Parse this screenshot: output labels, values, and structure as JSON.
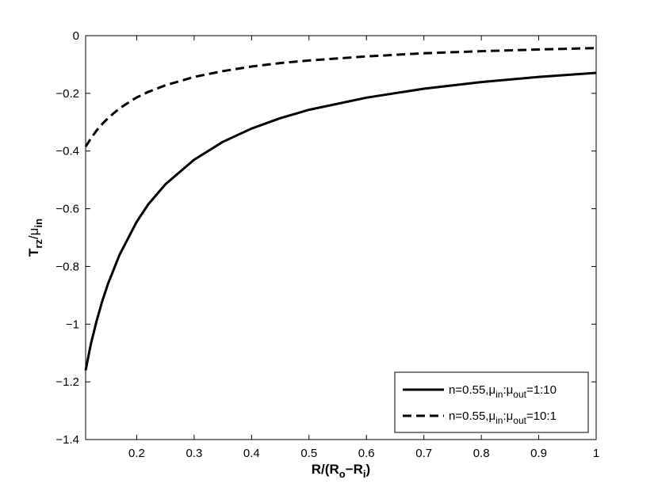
{
  "chart_data": {
    "type": "line",
    "title": "",
    "xlabel": {
      "base": "R/(R",
      "sub1": "o",
      "mid": "−R",
      "sub2": "i",
      "end": ")"
    },
    "ylabel": {
      "base": "T",
      "sub1": "rz",
      "mid": "/μ",
      "sub2": "in"
    },
    "xlim": [
      0.111,
      1.0
    ],
    "ylim": [
      -1.4,
      0
    ],
    "xticks": [
      0.2,
      0.3,
      0.4,
      0.5,
      0.6,
      0.7,
      0.8,
      0.9,
      1
    ],
    "xtick_labels": [
      "0.2",
      "0.3",
      "0.4",
      "0.5",
      "0.6",
      "0.7",
      "0.8",
      "0.9",
      "1"
    ],
    "yticks": [
      0,
      -0.2,
      -0.4,
      -0.6,
      -0.8,
      -1,
      -1.2,
      -1.4
    ],
    "ytick_labels": [
      "0",
      "−0.2",
      "−0.4",
      "−0.6",
      "−0.8",
      "−1",
      "−1.2",
      "−1.4"
    ],
    "grid": false,
    "legend_position": "bottom-right",
    "series": [
      {
        "style": "solid",
        "legend": {
          "prefix": "n=0.55,μ",
          "sub1": "in",
          "mid": ":μ",
          "sub2": "out",
          "suffix": "=1:10"
        },
        "x": [
          0.111,
          0.12,
          0.13,
          0.14,
          0.15,
          0.17,
          0.2,
          0.22,
          0.25,
          0.3,
          0.35,
          0.4,
          0.45,
          0.5,
          0.6,
          0.7,
          0.8,
          0.9,
          1.0
        ],
        "y": [
          -1.16,
          -1.07,
          -0.99,
          -0.92,
          -0.86,
          -0.76,
          -0.645,
          -0.585,
          -0.515,
          -0.43,
          -0.368,
          -0.322,
          -0.286,
          -0.257,
          -0.215,
          -0.184,
          -0.161,
          -0.143,
          -0.129
        ]
      },
      {
        "style": "dashed",
        "legend": {
          "prefix": "n=0.55,μ",
          "sub1": "in",
          "mid": ":μ",
          "sub2": "out",
          "suffix": "=10:1"
        },
        "x": [
          0.111,
          0.12,
          0.13,
          0.14,
          0.15,
          0.17,
          0.2,
          0.22,
          0.25,
          0.3,
          0.35,
          0.4,
          0.45,
          0.5,
          0.6,
          0.7,
          0.8,
          0.9,
          1.0
        ],
        "y": [
          -0.385,
          -0.357,
          -0.329,
          -0.306,
          -0.286,
          -0.252,
          -0.214,
          -0.195,
          -0.172,
          -0.143,
          -0.123,
          -0.107,
          -0.095,
          -0.086,
          -0.072,
          -0.061,
          -0.054,
          -0.048,
          -0.043
        ]
      }
    ]
  }
}
